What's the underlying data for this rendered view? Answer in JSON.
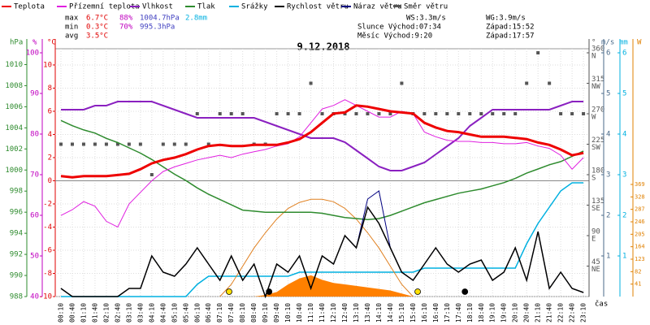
{
  "chart_data": {
    "type": "line",
    "title": "9.12.2018",
    "x_title": "čas",
    "categories": [
      "00:10",
      "00:40",
      "01:10",
      "01:40",
      "02:10",
      "02:40",
      "03:10",
      "03:40",
      "04:10",
      "04:40",
      "05:10",
      "05:40",
      "06:10",
      "06:40",
      "07:10",
      "07:40",
      "08:10",
      "08:40",
      "09:10",
      "09:40",
      "10:10",
      "10:40",
      "11:10",
      "11:40",
      "12:10",
      "12:40",
      "13:10",
      "13:40",
      "14:10",
      "14:40",
      "15:10",
      "15:40",
      "16:10",
      "16:40",
      "17:10",
      "17:40",
      "18:10",
      "18:40",
      "19:10",
      "19:40",
      "20:10",
      "20:40",
      "21:10",
      "21:40",
      "22:10",
      "22:40",
      "23:10"
    ],
    "axes": {
      "press": {
        "title": "hPa",
        "lim": [
          988,
          1011.5
        ],
        "ticks": [
          988,
          990,
          992,
          994,
          996,
          998,
          1000,
          1002,
          1004,
          1006,
          1008,
          1010
        ],
        "color": "#2e8b2e"
      },
      "hum": {
        "title": "%",
        "lim": [
          40,
          101
        ],
        "ticks": [
          40,
          50,
          60,
          70,
          80,
          90,
          100
        ],
        "color": "#c000c0"
      },
      "temp": {
        "title": "°C",
        "lim": [
          -10,
          11.4
        ],
        "ticks": [
          -10,
          -8,
          -6,
          -4,
          -2,
          0,
          2,
          4,
          6,
          8,
          10
        ],
        "color": "#e00000"
      },
      "dir": {
        "title": "°",
        "lim": [
          0,
          366
        ],
        "ticks": [
          45,
          90,
          135,
          180,
          225,
          270,
          315,
          360
        ],
        "tick_names": [
          "NE",
          "E",
          "SE",
          "S",
          "SW",
          "W",
          "NW",
          "N"
        ],
        "color": "#555555"
      },
      "wind": {
        "title": "m/s",
        "lim": [
          0,
          6.1
        ],
        "ticks": [
          1,
          2,
          3,
          4,
          5,
          6
        ],
        "color": "#4a6a8a"
      },
      "rain": {
        "title": "mm",
        "lim": [
          0,
          6.1
        ],
        "ticks": [
          1,
          2,
          3,
          4,
          5,
          6
        ],
        "color": "#00b0e0"
      },
      "rad": {
        "title": "W",
        "lim": [
          0,
          815.5
        ],
        "ticks": [
          41,
          82,
          123,
          164,
          205,
          246,
          287,
          328,
          369
        ],
        "color": "#e08000"
      }
    },
    "grid": true,
    "series": [
      {
        "name": "Teplota",
        "color": "#ee0000",
        "axis": "temp",
        "style": "line",
        "width": 3,
        "values": [
          0.4,
          0.3,
          0.4,
          0.4,
          0.4,
          0.5,
          0.6,
          1.0,
          1.5,
          1.8,
          2.0,
          2.3,
          2.7,
          3.0,
          3.1,
          3.0,
          3.0,
          3.1,
          3.1,
          3.1,
          3.3,
          3.6,
          4.2,
          5.0,
          5.8,
          5.9,
          6.5,
          6.4,
          6.2,
          6.0,
          5.9,
          5.8,
          5.0,
          4.6,
          4.3,
          4.2,
          4.0,
          3.8,
          3.8,
          3.8,
          3.7,
          3.6,
          3.3,
          3.1,
          2.7,
          2.2,
          2.4
        ]
      },
      {
        "name": "Přízemní teplota",
        "color": "#e020e0",
        "axis": "temp",
        "style": "line",
        "width": 1,
        "values": [
          -3.0,
          -2.5,
          -1.8,
          -2.2,
          -3.5,
          -4.0,
          -2.0,
          -1.0,
          0.0,
          0.8,
          1.2,
          1.5,
          1.8,
          2.0,
          2.2,
          2.0,
          2.3,
          2.5,
          2.7,
          3.0,
          3.2,
          3.8,
          5.0,
          6.2,
          6.5,
          7.0,
          6.5,
          6.0,
          5.5,
          5.5,
          6.0,
          5.8,
          4.2,
          3.8,
          3.5,
          3.4,
          3.4,
          3.3,
          3.3,
          3.2,
          3.2,
          3.3,
          3.0,
          2.8,
          2.2,
          1.0,
          2.0
        ]
      },
      {
        "name": "Vlhkost",
        "color": "#8a20c0",
        "axis": "hum",
        "style": "line",
        "width": 2,
        "values": [
          86,
          86,
          86,
          87,
          87,
          88,
          88,
          88,
          88,
          87,
          86,
          85,
          84,
          84,
          84,
          84,
          84,
          84,
          83,
          82,
          81,
          80,
          79,
          79,
          79,
          78,
          76,
          74,
          72,
          71,
          71,
          72,
          73,
          75,
          77,
          79,
          82,
          84,
          86,
          86,
          86,
          86,
          86,
          86,
          87,
          88,
          88
        ]
      },
      {
        "name": "Tlak",
        "color": "#2e8b2e",
        "axis": "press",
        "style": "line",
        "width": 1.5,
        "values": [
          1004.7,
          1004.2,
          1003.8,
          1003.5,
          1003.0,
          1002.6,
          1002.1,
          1001.6,
          1001.0,
          1000.3,
          999.6,
          999.0,
          998.3,
          997.7,
          997.2,
          996.7,
          996.2,
          996.1,
          996.0,
          996.0,
          996.0,
          996.0,
          996.0,
          995.9,
          995.7,
          995.5,
          995.4,
          995.3,
          995.4,
          995.7,
          996.1,
          996.5,
          996.9,
          997.2,
          997.5,
          997.8,
          998.0,
          998.2,
          998.5,
          998.8,
          999.2,
          999.7,
          1000.1,
          1000.5,
          1000.8,
          1001.3,
          1001.8
        ]
      },
      {
        "name": "Srážky",
        "color": "#00b0e0",
        "axis": "rain",
        "style": "line",
        "width": 1.5,
        "values": [
          0,
          0,
          0,
          0,
          0,
          0,
          0,
          0,
          0,
          0,
          0,
          0,
          0.3,
          0.5,
          0.5,
          0.5,
          0.5,
          0.5,
          0.5,
          0.5,
          0.5,
          0.6,
          0.6,
          0.6,
          0.6,
          0.6,
          0.6,
          0.6,
          0.6,
          0.6,
          0.6,
          0.6,
          0.7,
          0.7,
          0.7,
          0.7,
          0.7,
          0.7,
          0.7,
          0.7,
          0.7,
          1.3,
          1.8,
          2.2,
          2.6,
          2.8,
          2.8
        ]
      },
      {
        "name": "Rychlost větru",
        "color": "#000000",
        "axis": "wind",
        "style": "line",
        "width": 1.5,
        "values": [
          0.2,
          0,
          0,
          0,
          0,
          0,
          0.2,
          0.2,
          1.0,
          0.6,
          0.5,
          0.8,
          1.2,
          0.8,
          0.4,
          1.0,
          0.4,
          0.8,
          0,
          0.8,
          0.6,
          1.0,
          0.2,
          1.0,
          0.8,
          1.5,
          1.2,
          2.2,
          1.8,
          1.2,
          0.6,
          0.4,
          0.8,
          1.2,
          0.8,
          0.6,
          0.8,
          0.9,
          0.4,
          0.6,
          1.2,
          0.4,
          1.6,
          0.2,
          0.6,
          0.2,
          0.1
        ]
      },
      {
        "name": "Náraz větru",
        "color": "#000080",
        "axis": "wind",
        "style": "line",
        "width": 1,
        "values": [
          0.2,
          0,
          0,
          0,
          0,
          0,
          0.2,
          0.2,
          1.0,
          0.6,
          0.5,
          0.8,
          1.2,
          0.8,
          0.4,
          1.0,
          0.4,
          0.8,
          0,
          0.8,
          0.6,
          1.0,
          0.2,
          1.0,
          0.8,
          1.5,
          1.2,
          2.4,
          2.6,
          1.2,
          0.6,
          0.4,
          0.8,
          1.2,
          0.8,
          0.6,
          0.8,
          0.9,
          0.4,
          0.6,
          1.2,
          0.4,
          1.6,
          0.2,
          0.6,
          0.2,
          0.1
        ]
      },
      {
        "name": "Směr větru",
        "color": "#555555",
        "axis": "dir",
        "style": "points",
        "width": 1,
        "values": [
          225,
          225,
          225,
          225,
          225,
          225,
          225,
          225,
          180,
          225,
          225,
          225,
          270,
          225,
          270,
          270,
          270,
          225,
          225,
          270,
          270,
          270,
          315,
          270,
          270,
          270,
          270,
          270,
          270,
          270,
          315,
          270,
          270,
          270,
          270,
          270,
          270,
          270,
          270,
          270,
          270,
          315,
          360,
          315,
          270,
          270,
          270
        ]
      },
      {
        "color": "#ff8000",
        "axis": "rad",
        "style": "area",
        "width": 1,
        "values": [
          0,
          0,
          0,
          0,
          0,
          0,
          0,
          0,
          0,
          0,
          0,
          0,
          0,
          0,
          0,
          0,
          0,
          0,
          5,
          15,
          40,
          60,
          70,
          55,
          45,
          40,
          35,
          30,
          25,
          20,
          10,
          0,
          0,
          0,
          0,
          0,
          0,
          0,
          0,
          0,
          0,
          0,
          0,
          0,
          0,
          0,
          0
        ]
      },
      {
        "color": "#e08020",
        "axis": "rad",
        "style": "line",
        "width": 1,
        "values": [
          null,
          null,
          null,
          null,
          null,
          null,
          null,
          null,
          null,
          null,
          null,
          null,
          null,
          null,
          0,
          40,
          100,
          160,
          210,
          255,
          290,
          310,
          320,
          320,
          312,
          290,
          255,
          210,
          160,
          100,
          40,
          0,
          null,
          null,
          null,
          null,
          null,
          null,
          null,
          null,
          null,
          null,
          null,
          null,
          null,
          null,
          null
        ]
      }
    ],
    "stats": [
      {
        "label": "max",
        "temp": "6.7°C",
        "hum": "88%",
        "press": "1004.7hPa",
        "rain": "2.8mm"
      },
      {
        "label": "min",
        "temp": "0.3°C",
        "hum": "70%",
        "press": "995.3hPa"
      },
      {
        "label": "avg",
        "temp": "3.5°C"
      }
    ],
    "info": {
      "ws": "WS:3.3m/s",
      "wg": "WG:3.9m/s",
      "sun": "Slunce Východ:07:34",
      "sunset": "Západ:15:52",
      "moon": "Měsíc  Východ:9:20",
      "moonset": "Západ:17:57"
    }
  }
}
